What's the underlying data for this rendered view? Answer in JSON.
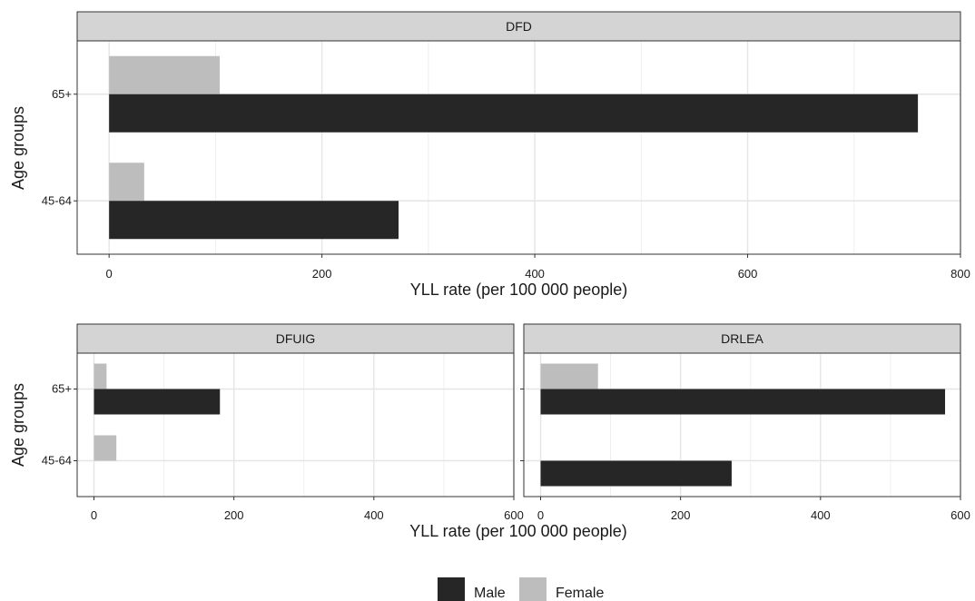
{
  "colors": {
    "male": "#262626",
    "female": "#bdbdbd",
    "strip": "#d4d4d4",
    "grid": "#e5e5e5"
  },
  "legend": {
    "placement": "bottom",
    "items": [
      {
        "label": "Male",
        "color": "#262626"
      },
      {
        "label": "Female",
        "color": "#bdbdbd"
      }
    ]
  },
  "chart_data": [
    {
      "type": "bar",
      "orientation": "horizontal",
      "title": "DFD",
      "xlabel": "YLL rate (per 100 000 people)",
      "ylabel": "Age groups",
      "categories": [
        "45-64",
        "65+"
      ],
      "xlim": [
        -30,
        800
      ],
      "xticks": [
        0,
        200,
        400,
        600,
        800
      ],
      "grid": true,
      "series": [
        {
          "name": "Male",
          "values": [
            272,
            760
          ]
        },
        {
          "name": "Female",
          "values": [
            33,
            104
          ]
        }
      ]
    },
    {
      "type": "bar",
      "orientation": "horizontal",
      "title": "DFUIG",
      "xlabel": "YLL rate (per 100 000 people)",
      "ylabel": "Age groups",
      "categories": [
        "45-64",
        "65+"
      ],
      "xlim": [
        -24,
        600
      ],
      "xticks": [
        0,
        200,
        400,
        600
      ],
      "grid": true,
      "series": [
        {
          "name": "Male",
          "values": [
            0,
            180
          ]
        },
        {
          "name": "Female",
          "values": [
            32,
            18
          ]
        }
      ]
    },
    {
      "type": "bar",
      "orientation": "horizontal",
      "title": "DRLEA",
      "xlabel": "YLL rate (per 100 000 people)",
      "ylabel": "Age groups",
      "categories": [
        "45-64",
        "65+"
      ],
      "xlim": [
        -24,
        600
      ],
      "xticks": [
        0,
        200,
        400,
        600
      ],
      "grid": true,
      "series": [
        {
          "name": "Male",
          "values": [
            273,
            578
          ]
        },
        {
          "name": "Female",
          "values": [
            0,
            82
          ]
        }
      ]
    }
  ]
}
